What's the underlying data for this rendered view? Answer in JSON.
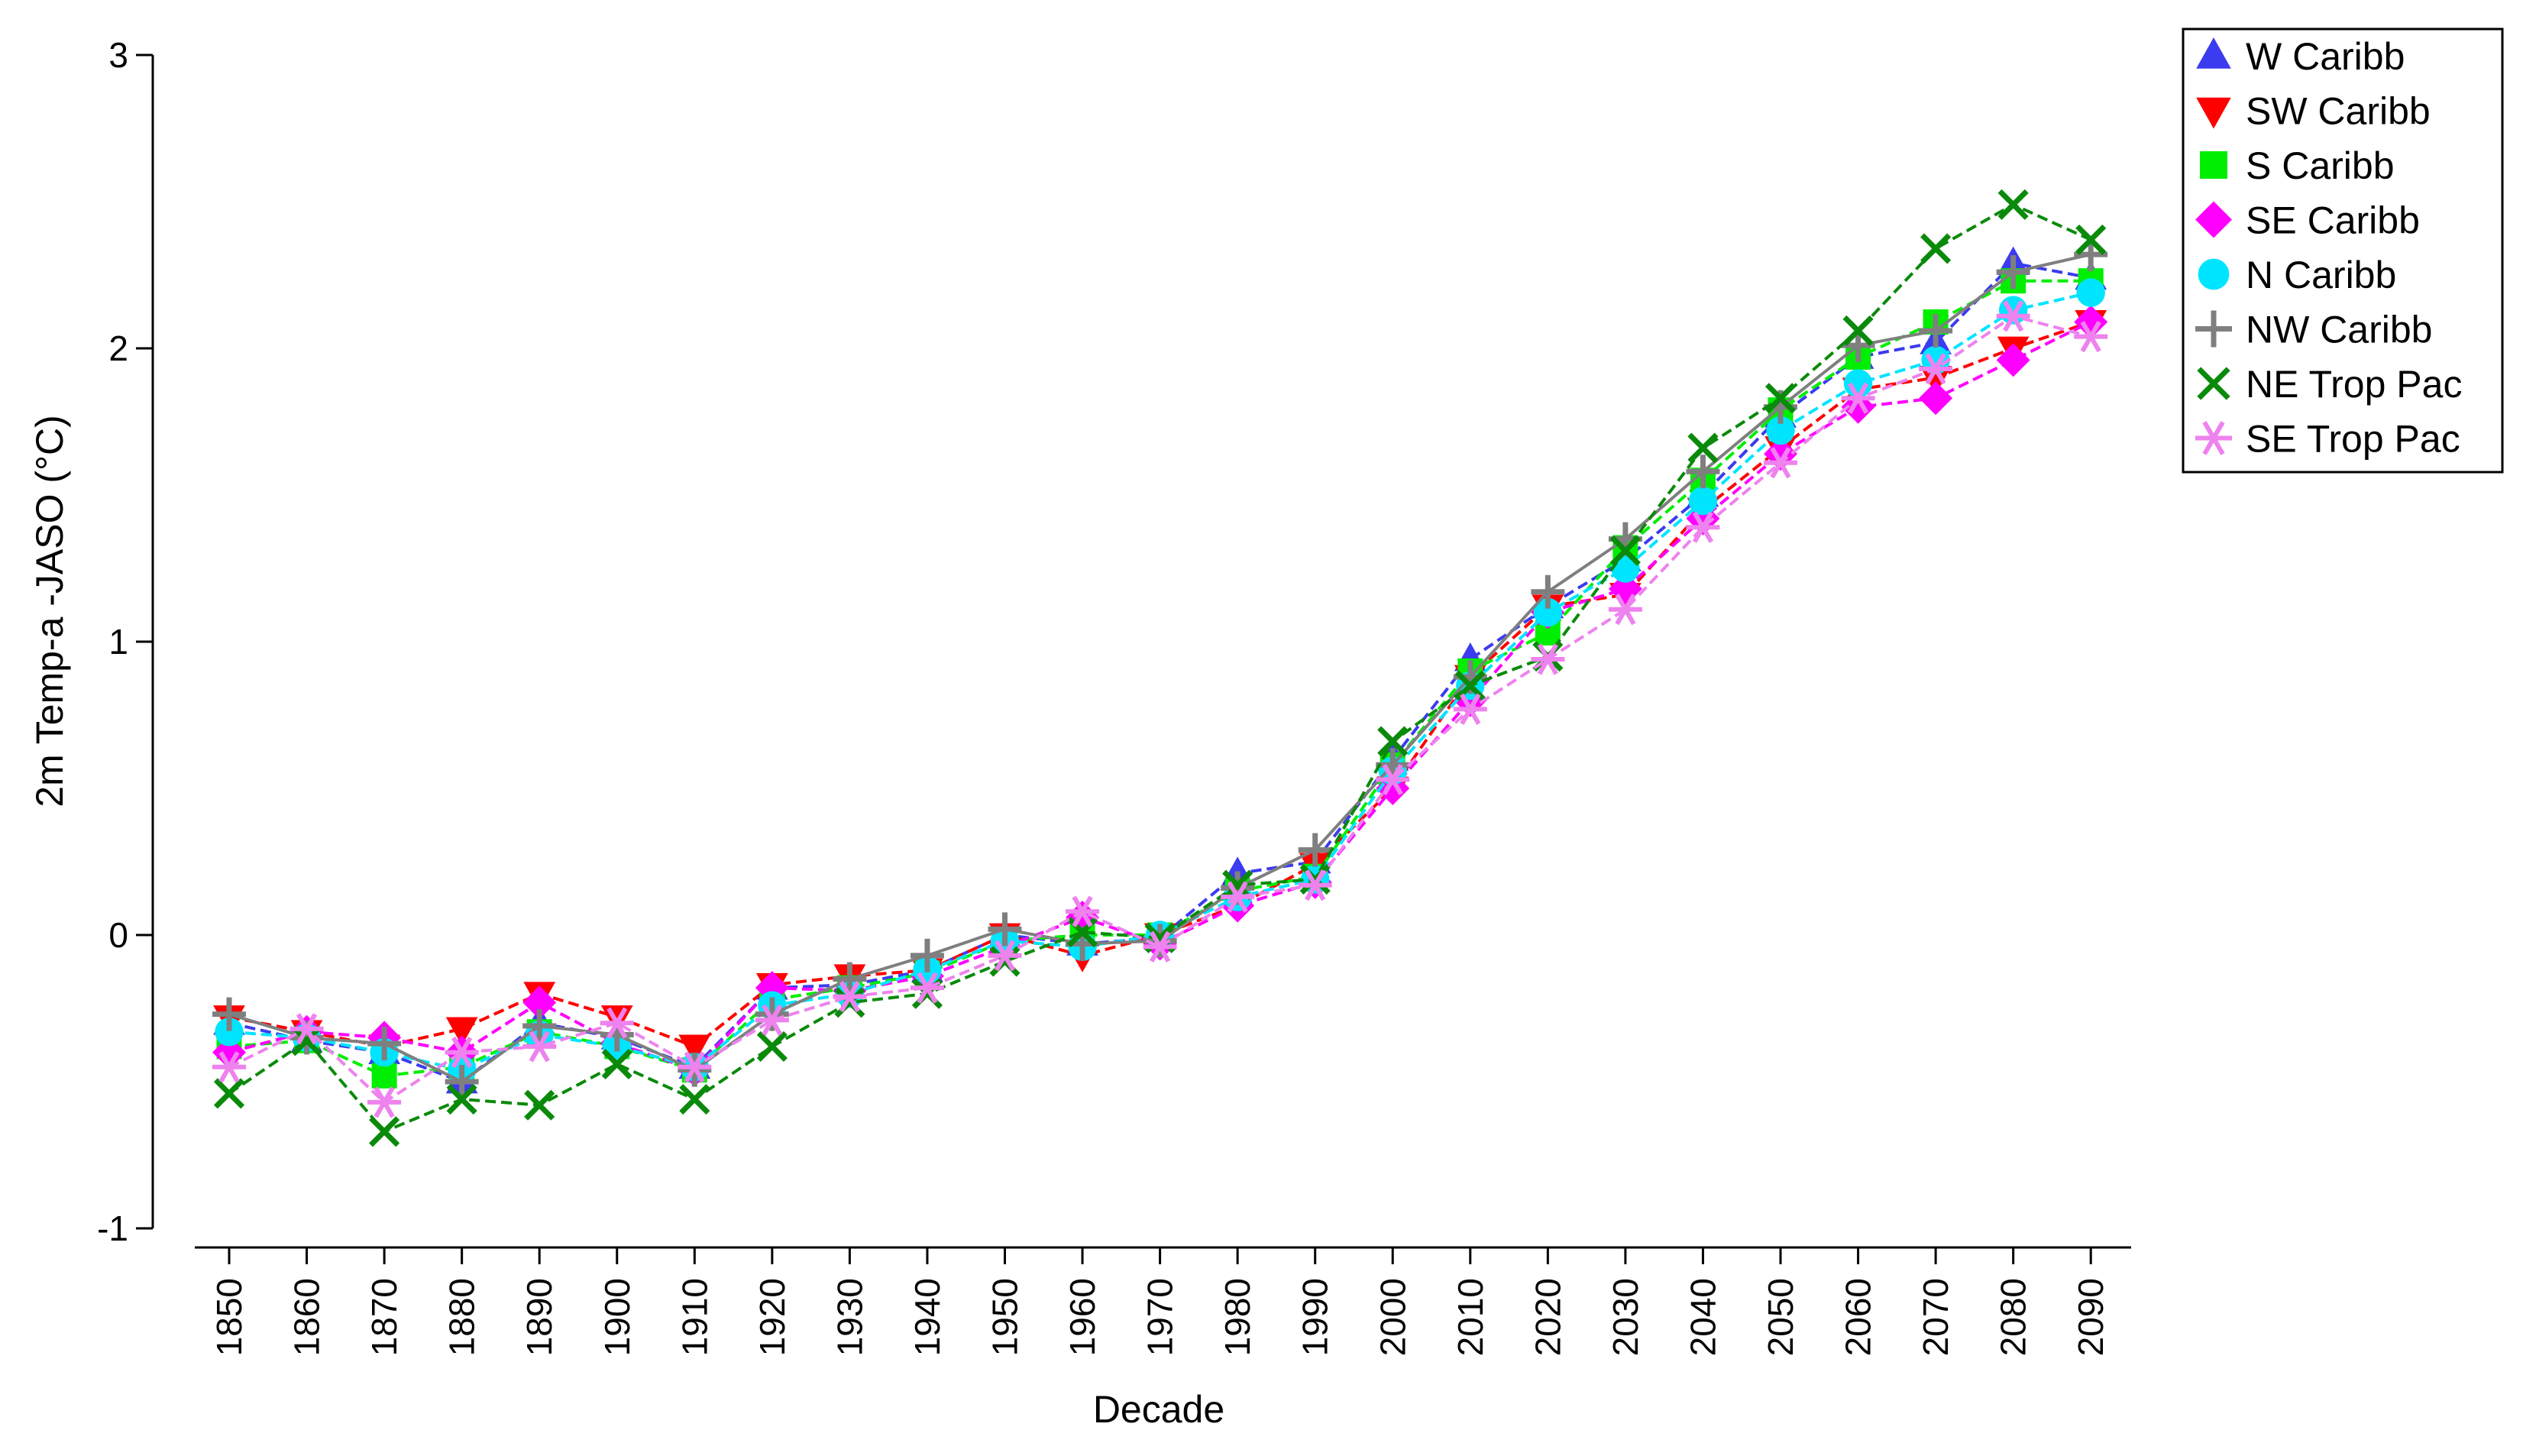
{
  "chart_data": {
    "type": "line",
    "xlabel": "Decade",
    "ylabel": "2m Temp-a -JASO (°C)",
    "ylim": [
      -1,
      3
    ],
    "yticks": [
      -1,
      0,
      1,
      2,
      3
    ],
    "categories": [
      "1850",
      "1860",
      "1870",
      "1880",
      "1890",
      "1900",
      "1910",
      "1920",
      "1930",
      "1940",
      "1950",
      "1960",
      "1970",
      "1980",
      "1990",
      "2000",
      "2010",
      "2020",
      "2030",
      "2040",
      "2050",
      "2060",
      "2070",
      "2080",
      "2090"
    ],
    "grid": false,
    "legend_position": "top-right",
    "series": [
      {
        "name": "W Caribb",
        "color": "#3b3bf0",
        "marker": "triangle-up",
        "values": [
          -0.3,
          -0.36,
          -0.4,
          -0.5,
          -0.3,
          -0.35,
          -0.45,
          -0.18,
          -0.17,
          -0.12,
          0.0,
          -0.03,
          -0.01,
          0.21,
          0.25,
          0.6,
          0.94,
          1.12,
          1.28,
          1.5,
          1.77,
          1.97,
          2.02,
          2.29,
          2.24
        ]
      },
      {
        "name": "SW Caribb",
        "color": "#ff0000",
        "marker": "triangle-down",
        "values": [
          -0.28,
          -0.33,
          -0.38,
          -0.32,
          -0.2,
          -0.28,
          -0.38,
          -0.17,
          -0.14,
          -0.12,
          0.0,
          -0.07,
          0.0,
          0.1,
          0.24,
          0.5,
          0.88,
          1.12,
          1.16,
          1.45,
          1.66,
          1.86,
          1.9,
          2.0,
          2.09
        ]
      },
      {
        "name": "S Caribb",
        "color": "#00ee00",
        "marker": "square",
        "values": [
          -0.38,
          -0.36,
          -0.48,
          -0.45,
          -0.33,
          -0.38,
          -0.46,
          -0.22,
          -0.18,
          -0.13,
          -0.02,
          0.0,
          0.0,
          0.15,
          0.2,
          0.58,
          0.9,
          1.03,
          1.32,
          1.55,
          1.79,
          1.97,
          2.09,
          2.23,
          2.23
        ]
      },
      {
        "name": "SE Caribb",
        "color": "#ff00ff",
        "marker": "diamond",
        "values": [
          -0.4,
          -0.33,
          -0.35,
          -0.4,
          -0.23,
          -0.37,
          -0.46,
          -0.18,
          -0.19,
          -0.14,
          -0.04,
          0.06,
          -0.03,
          0.1,
          0.18,
          0.5,
          0.8,
          1.1,
          1.18,
          1.42,
          1.64,
          1.8,
          1.83,
          1.96,
          2.09
        ]
      },
      {
        "name": "N Caribb",
        "color": "#00e5ff",
        "marker": "circle",
        "values": [
          -0.33,
          -0.35,
          -0.4,
          -0.46,
          -0.34,
          -0.38,
          -0.45,
          -0.24,
          -0.2,
          -0.12,
          -0.02,
          -0.04,
          0.0,
          0.13,
          0.19,
          0.56,
          0.85,
          1.1,
          1.25,
          1.48,
          1.72,
          1.88,
          1.96,
          2.13,
          2.19
        ]
      },
      {
        "name": "NW Caribb",
        "color": "#7f7f7f",
        "marker": "plus",
        "values": [
          -0.27,
          -0.35,
          -0.37,
          -0.5,
          -0.31,
          -0.34,
          -0.46,
          -0.27,
          -0.15,
          -0.07,
          0.02,
          -0.03,
          -0.02,
          0.16,
          0.29,
          0.58,
          0.88,
          1.17,
          1.35,
          1.58,
          1.8,
          2.01,
          2.06,
          2.26,
          2.32
        ]
      },
      {
        "name": "NE Trop Pac",
        "color": "#0a8a0a",
        "marker": "x",
        "values": [
          -0.54,
          -0.36,
          -0.67,
          -0.56,
          -0.58,
          -0.44,
          -0.56,
          -0.38,
          -0.23,
          -0.2,
          -0.09,
          0.01,
          -0.01,
          0.17,
          0.19,
          0.66,
          0.85,
          0.95,
          1.31,
          1.66,
          1.83,
          2.06,
          2.34,
          2.49,
          2.37
        ]
      },
      {
        "name": "SE Trop Pac",
        "color": "#ee82ee",
        "marker": "asterisk",
        "values": [
          -0.45,
          -0.32,
          -0.57,
          -0.4,
          -0.38,
          -0.3,
          -0.45,
          -0.29,
          -0.21,
          -0.18,
          -0.07,
          0.08,
          -0.04,
          0.13,
          0.17,
          0.53,
          0.77,
          0.94,
          1.11,
          1.39,
          1.61,
          1.83,
          1.93,
          2.11,
          2.04
        ]
      }
    ]
  }
}
